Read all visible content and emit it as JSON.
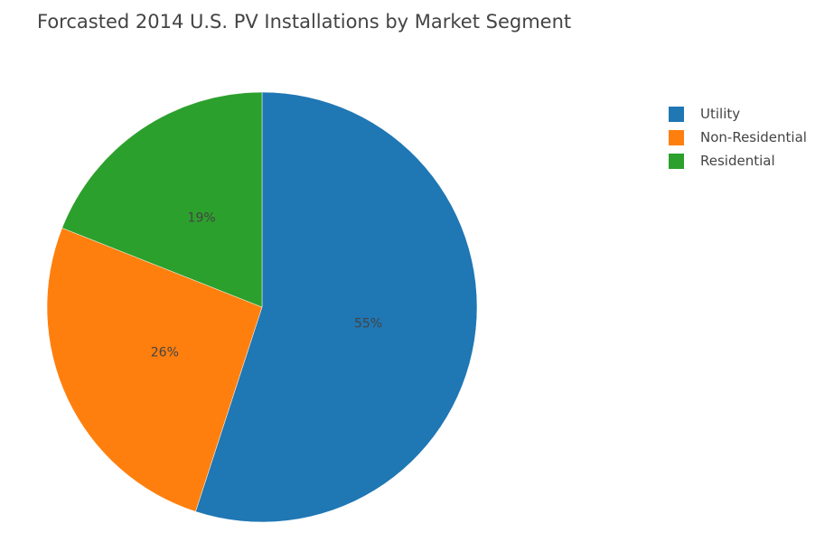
{
  "chart_data": {
    "type": "pie",
    "title": "Forcasted 2014 U.S. PV Installations by Market Segment",
    "categories": [
      "Utility",
      "Non-Residential",
      "Residential"
    ],
    "values": [
      55,
      26,
      19
    ],
    "value_labels": [
      "55%",
      "26%",
      "19%"
    ],
    "colors": [
      "#1f77b4",
      "#ff7f0e",
      "#2ca02c"
    ],
    "direction": "clockwise",
    "start_angle": "top",
    "legend_position": "top-right"
  }
}
